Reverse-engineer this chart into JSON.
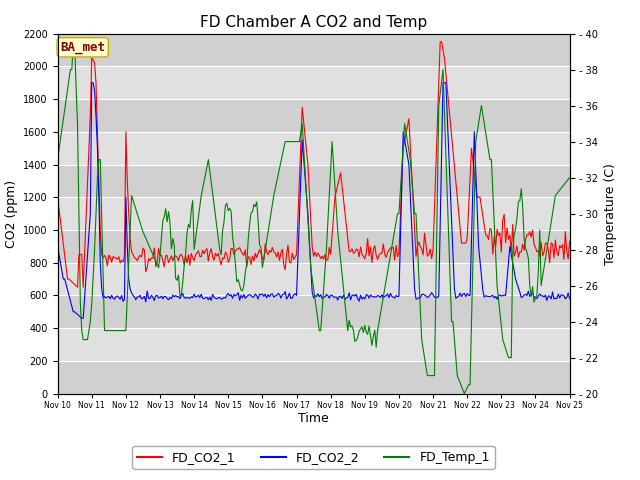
{
  "title": "FD Chamber A CO2 and Temp",
  "xlabel": "Time",
  "ylabel_left": "CO2 (ppm)",
  "ylabel_right": "Temperature (C)",
  "watermark": "BA_met",
  "ylim_left": [
    0,
    2200
  ],
  "ylim_right": [
    20,
    40
  ],
  "xlim": [
    0,
    360
  ],
  "xtick_positions": [
    0,
    24,
    48,
    72,
    96,
    120,
    144,
    168,
    192,
    216,
    240,
    264,
    288,
    312,
    336,
    360
  ],
  "xtick_labels": [
    "Nov 10",
    "Nov 11",
    "Nov 12",
    "Nov 13",
    "Nov 14",
    "Nov 15",
    "Nov 16",
    "Nov 17",
    "Nov 18",
    "Nov 19",
    "Nov 20",
    "Nov 21",
    "Nov 22",
    "Nov 23",
    "Nov 24",
    "Nov 25"
  ],
  "yticks_left": [
    0,
    200,
    400,
    600,
    800,
    1000,
    1200,
    1400,
    1600,
    1800,
    2000,
    2200
  ],
  "yticks_right": [
    20,
    22,
    24,
    26,
    28,
    30,
    32,
    34,
    36,
    38,
    40
  ],
  "legend_labels": [
    "FD_CO2_1",
    "FD_CO2_2",
    "FD_Temp_1"
  ],
  "line_colors": [
    "red",
    "blue",
    "green"
  ],
  "bg_color": "#e0e0e0",
  "alt_bg_color": "#cccccc",
  "grid_color": "white",
  "title_fontsize": 11,
  "axis_fontsize": 9,
  "tick_fontsize": 7,
  "legend_fontsize": 9,
  "watermark_fontsize": 9
}
